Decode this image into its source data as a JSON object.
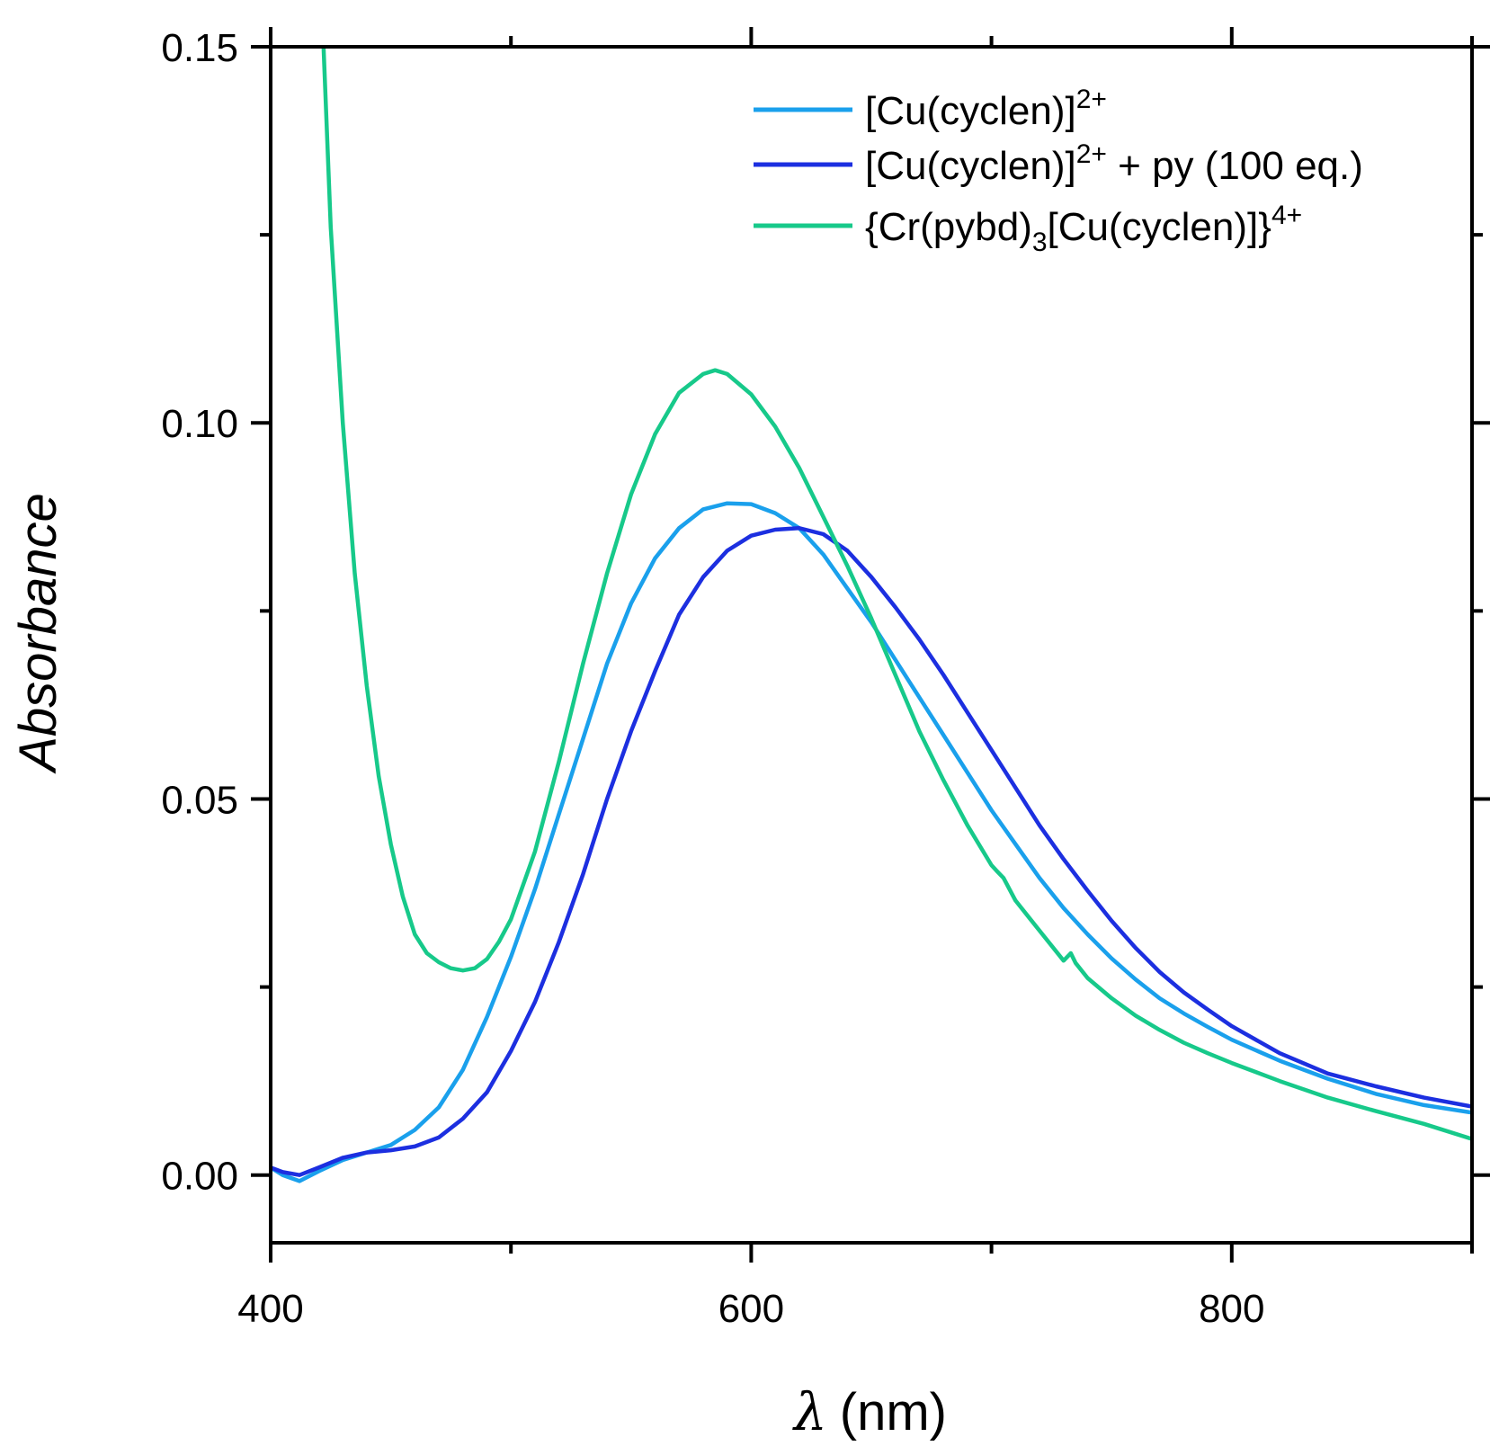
{
  "chart_data": {
    "type": "line",
    "xlabel_symbol": "λ",
    "xlabel_unit": "(nm)",
    "ylabel": "Absorbance",
    "xlim": [
      400,
      900
    ],
    "ylim": [
      -0.009,
      0.15
    ],
    "xticks": [
      400,
      600,
      800
    ],
    "xtick_labels": [
      "400",
      "600",
      "800"
    ],
    "xminor": [
      500,
      700,
      900
    ],
    "yticks": [
      0.0,
      0.05,
      0.1,
      0.15
    ],
    "ytick_labels": [
      "0.00",
      "0.05",
      "0.10",
      "0.15"
    ],
    "yminor": [
      0.025,
      0.075,
      0.125
    ],
    "legend_position": "top-right",
    "series": [
      {
        "name": "[Cu(cyclen)]2+",
        "label_main": "[Cu(cyclen)]",
        "label_sup": "2+",
        "label_extra": "",
        "color": "#1aa0ec",
        "x": [
          400,
          405,
          412,
          420,
          430,
          440,
          450,
          460,
          470,
          480,
          490,
          500,
          510,
          520,
          530,
          540,
          550,
          560,
          570,
          580,
          590,
          600,
          610,
          620,
          630,
          640,
          650,
          660,
          670,
          680,
          690,
          700,
          710,
          720,
          730,
          740,
          750,
          760,
          770,
          780,
          790,
          800,
          820,
          840,
          860,
          880,
          900
        ],
        "y": [
          0.001,
          0.0,
          -0.0008,
          0.0005,
          0.002,
          0.003,
          0.004,
          0.006,
          0.009,
          0.014,
          0.021,
          0.029,
          0.038,
          0.048,
          0.058,
          0.068,
          0.076,
          0.082,
          0.086,
          0.0885,
          0.0893,
          0.0892,
          0.088,
          0.086,
          0.0825,
          0.078,
          0.0735,
          0.0685,
          0.0635,
          0.0585,
          0.0535,
          0.0485,
          0.044,
          0.0395,
          0.0355,
          0.032,
          0.0288,
          0.026,
          0.0235,
          0.0215,
          0.0197,
          0.018,
          0.0152,
          0.0128,
          0.0108,
          0.0093,
          0.0083
        ]
      },
      {
        "name": "[Cu(cyclen)]2+ + py (100 eq.)",
        "label_main": "[Cu(cyclen)]",
        "label_sup": "2+",
        "label_extra": " + py (100 eq.)",
        "color": "#1c2fe0",
        "x": [
          400,
          405,
          412,
          420,
          430,
          440,
          450,
          460,
          470,
          480,
          490,
          500,
          510,
          520,
          530,
          540,
          550,
          560,
          570,
          580,
          590,
          600,
          610,
          620,
          630,
          640,
          650,
          660,
          670,
          680,
          690,
          700,
          710,
          720,
          730,
          740,
          750,
          760,
          770,
          780,
          790,
          800,
          820,
          840,
          860,
          880,
          900
        ],
        "y": [
          0.001,
          0.0004,
          0.0,
          0.001,
          0.0023,
          0.003,
          0.0033,
          0.0038,
          0.005,
          0.0075,
          0.011,
          0.0165,
          0.023,
          0.031,
          0.04,
          0.05,
          0.059,
          0.067,
          0.0745,
          0.0795,
          0.083,
          0.085,
          0.0858,
          0.086,
          0.0852,
          0.083,
          0.0795,
          0.0755,
          0.0712,
          0.0665,
          0.0615,
          0.0565,
          0.0515,
          0.0465,
          0.042,
          0.0378,
          0.0338,
          0.0302,
          0.027,
          0.0243,
          0.022,
          0.0198,
          0.0162,
          0.0135,
          0.0118,
          0.0103,
          0.0091
        ]
      },
      {
        "name": "{Cr(pybd)3[Cu(cyclen)]}4+",
        "label_main": "{Cr(pybd)",
        "label_sub": "3",
        "label_rest": "[Cu(cyclen)]}",
        "label_sup": "4+",
        "color": "#17c98a",
        "x": [
          422,
          425,
          430,
          435,
          440,
          445,
          450,
          455,
          460,
          465,
          470,
          475,
          480,
          485,
          490,
          495,
          500,
          510,
          520,
          530,
          540,
          550,
          560,
          570,
          580,
          585,
          590,
          600,
          610,
          620,
          630,
          640,
          650,
          660,
          670,
          680,
          690,
          700,
          702,
          705,
          710,
          720,
          730,
          733,
          735,
          740,
          750,
          760,
          770,
          780,
          790,
          800,
          820,
          840,
          860,
          880,
          900
        ],
        "y": [
          0.15,
          0.126,
          0.1,
          0.08,
          0.065,
          0.053,
          0.044,
          0.037,
          0.032,
          0.0295,
          0.0283,
          0.0275,
          0.0272,
          0.0275,
          0.0287,
          0.031,
          0.034,
          0.043,
          0.055,
          0.068,
          0.08,
          0.0905,
          0.0985,
          0.104,
          0.1065,
          0.107,
          0.1065,
          0.1038,
          0.0995,
          0.094,
          0.0875,
          0.081,
          0.074,
          0.0665,
          0.059,
          0.0525,
          0.0465,
          0.0412,
          0.0405,
          0.0395,
          0.0365,
          0.0325,
          0.0285,
          0.0295,
          0.0282,
          0.0262,
          0.0235,
          0.0212,
          0.0193,
          0.0176,
          0.0162,
          0.0149,
          0.0125,
          0.0103,
          0.0085,
          0.0068,
          0.0048
        ]
      }
    ]
  }
}
